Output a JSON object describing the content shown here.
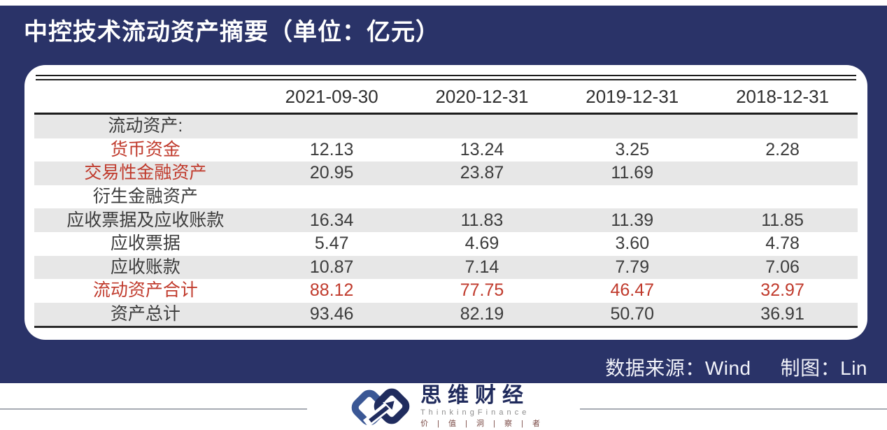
{
  "title": "中控技术流动资产摘要（单位：亿元）",
  "table": {
    "columns": [
      "2021-09-30",
      "2020-12-31",
      "2019-12-31",
      "2018-12-31"
    ],
    "rows": [
      {
        "label": "流动资产:",
        "values": [
          "",
          "",
          "",
          ""
        ],
        "label_red": false,
        "values_red": false
      },
      {
        "label": "货币资金",
        "values": [
          "12.13",
          "13.24",
          "3.25",
          "2.28"
        ],
        "label_red": true,
        "values_red": false
      },
      {
        "label": "交易性金融资产",
        "values": [
          "20.95",
          "23.87",
          "11.69",
          ""
        ],
        "label_red": true,
        "values_red": false
      },
      {
        "label": "衍生金融资产",
        "values": [
          "",
          "",
          "",
          ""
        ],
        "label_red": false,
        "values_red": false
      },
      {
        "label": "应收票据及应收账款",
        "values": [
          "16.34",
          "11.83",
          "11.39",
          "11.85"
        ],
        "label_red": false,
        "values_red": false
      },
      {
        "label": "应收票据",
        "values": [
          "5.47",
          "4.69",
          "3.60",
          "4.78"
        ],
        "label_red": false,
        "values_red": false
      },
      {
        "label": "应收账款",
        "values": [
          "10.87",
          "7.14",
          "7.79",
          "7.06"
        ],
        "label_red": false,
        "values_red": false
      },
      {
        "label": "流动资产合计",
        "values": [
          "88.12",
          "77.75",
          "46.47",
          "32.97"
        ],
        "label_red": true,
        "values_red": true
      },
      {
        "label": "资产总计",
        "values": [
          "93.46",
          "82.19",
          "50.70",
          "36.91"
        ],
        "label_red": false,
        "values_red": false
      }
    ]
  },
  "footer_note": {
    "source_label": "数据来源：",
    "source_value": "Wind",
    "author_label": "制图：",
    "author_value": "Lin"
  },
  "brand": {
    "name": "思维财经",
    "name_en": "T h i n k i n g F i n a n c e",
    "tagline": "价 | 值 | 洞 | 察 | 者"
  },
  "colors": {
    "panel_navy": "#2a3368",
    "highlight_red": "#c03a2c",
    "stripe_gray": "#e7e7e7",
    "brand_navy": "#1f2a5c",
    "brand_blue": "#3a5795"
  }
}
